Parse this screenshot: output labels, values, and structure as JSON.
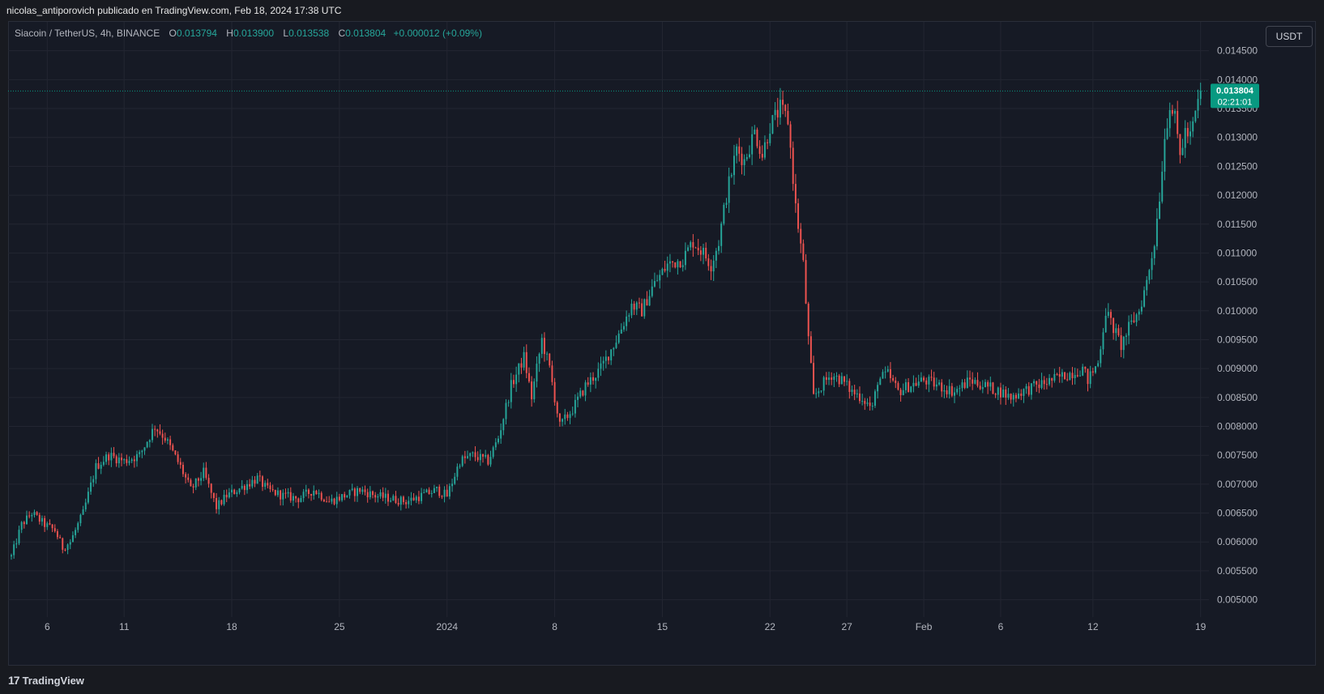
{
  "attribution": "nicolas_antiporovich publicado en TradingView.com, Feb 18, 2024 17:38 UTC",
  "legend": {
    "symbol": "Siacoin / TetherUS, 4h, BINANCE",
    "open_label": "O",
    "open": "0.013794",
    "high_label": "H",
    "high": "0.013900",
    "low_label": "L",
    "low": "0.013538",
    "close_label": "C",
    "close": "0.013804",
    "change": "+0.000012 (+0.09%)"
  },
  "currency_button": "USDT",
  "price_tag": {
    "price": "0.013804",
    "countdown": "02:21:01"
  },
  "footer": {
    "logo_text": "TradingView",
    "logo_mark": "17"
  },
  "colors": {
    "up": "#26a69a",
    "down": "#ef5350",
    "grid": "#232632",
    "text": "#b2b5be",
    "price_tag": "#089981"
  },
  "chart_data": {
    "type": "candlestick",
    "interval": "4h",
    "y_ticks": [
      "0.005000",
      "0.005500",
      "0.006000",
      "0.006500",
      "0.007000",
      "0.007500",
      "0.008000",
      "0.008500",
      "0.009000",
      "0.009500",
      "0.010000",
      "0.010500",
      "0.011000",
      "0.011500",
      "0.012000",
      "0.012500",
      "0.013000",
      "0.013500",
      "0.014000",
      "0.014500"
    ],
    "ylim": [
      0.0047,
      0.015
    ],
    "x_ticks": [
      {
        "label": "6",
        "index": 14
      },
      {
        "label": "11",
        "index": 44
      },
      {
        "label": "18",
        "index": 86
      },
      {
        "label": "25",
        "index": 128
      },
      {
        "label": "2024",
        "index": 170
      },
      {
        "label": "8",
        "index": 212
      },
      {
        "label": "15",
        "index": 254
      },
      {
        "label": "22",
        "index": 296
      },
      {
        "label": "27",
        "index": 326
      },
      {
        "label": "Feb",
        "index": 356
      },
      {
        "label": "6",
        "index": 386
      },
      {
        "label": "12",
        "index": 422
      },
      {
        "label": "19",
        "index": 464
      }
    ],
    "last_price": 0.013804,
    "anchors": [
      [
        0,
        0.00575
      ],
      [
        4,
        0.0063
      ],
      [
        8,
        0.0065
      ],
      [
        13,
        0.0063
      ],
      [
        17,
        0.0062
      ],
      [
        20,
        0.0059
      ],
      [
        23,
        0.006
      ],
      [
        28,
        0.0065
      ],
      [
        33,
        0.0073
      ],
      [
        38,
        0.0075
      ],
      [
        44,
        0.0074
      ],
      [
        50,
        0.0075
      ],
      [
        56,
        0.008
      ],
      [
        60,
        0.0078
      ],
      [
        66,
        0.0073
      ],
      [
        70,
        0.0069
      ],
      [
        75,
        0.0072
      ],
      [
        80,
        0.0066
      ],
      [
        84,
        0.0068
      ],
      [
        88,
        0.0069
      ],
      [
        92,
        0.007
      ],
      [
        96,
        0.0071
      ],
      [
        100,
        0.0069
      ],
      [
        106,
        0.0068
      ],
      [
        112,
        0.00675
      ],
      [
        118,
        0.0069
      ],
      [
        124,
        0.0067
      ],
      [
        130,
        0.0068
      ],
      [
        136,
        0.0069
      ],
      [
        142,
        0.0068
      ],
      [
        148,
        0.00675
      ],
      [
        154,
        0.0067
      ],
      [
        160,
        0.0068
      ],
      [
        166,
        0.0069
      ],
      [
        170,
        0.0068
      ],
      [
        175,
        0.0074
      ],
      [
        180,
        0.0075
      ],
      [
        186,
        0.0074
      ],
      [
        190,
        0.0078
      ],
      [
        195,
        0.0087
      ],
      [
        200,
        0.0092
      ],
      [
        203,
        0.0085
      ],
      [
        207,
        0.0095
      ],
      [
        210,
        0.009
      ],
      [
        214,
        0.008
      ],
      [
        219,
        0.0083
      ],
      [
        224,
        0.0087
      ],
      [
        230,
        0.009
      ],
      [
        236,
        0.0095
      ],
      [
        242,
        0.0101
      ],
      [
        246,
        0.01
      ],
      [
        250,
        0.0104
      ],
      [
        256,
        0.0108
      ],
      [
        262,
        0.0109
      ],
      [
        266,
        0.0112
      ],
      [
        270,
        0.011
      ],
      [
        273,
        0.0108
      ],
      [
        276,
        0.0112
      ],
      [
        279,
        0.012
      ],
      [
        283,
        0.0128
      ],
      [
        286,
        0.0126
      ],
      [
        290,
        0.0131
      ],
      [
        293,
        0.0127
      ],
      [
        296,
        0.0132
      ],
      [
        300,
        0.0135
      ],
      [
        303,
        0.0133
      ],
      [
        306,
        0.0118
      ],
      [
        309,
        0.0108
      ],
      [
        311,
        0.0095
      ],
      [
        313,
        0.0085
      ],
      [
        316,
        0.0087
      ],
      [
        320,
        0.0089
      ],
      [
        324,
        0.0088
      ],
      [
        328,
        0.0086
      ],
      [
        332,
        0.0085
      ],
      [
        336,
        0.0083
      ],
      [
        338,
        0.0088
      ],
      [
        342,
        0.0089
      ],
      [
        346,
        0.0086
      ],
      [
        350,
        0.0087
      ],
      [
        356,
        0.0088
      ],
      [
        362,
        0.0087
      ],
      [
        368,
        0.0086
      ],
      [
        374,
        0.0088
      ],
      [
        380,
        0.0087
      ],
      [
        386,
        0.0086
      ],
      [
        390,
        0.0085
      ],
      [
        394,
        0.0086
      ],
      [
        400,
        0.0087
      ],
      [
        406,
        0.0088
      ],
      [
        412,
        0.0089
      ],
      [
        418,
        0.009
      ],
      [
        420,
        0.0088
      ],
      [
        424,
        0.0091
      ],
      [
        427,
        0.01
      ],
      [
        430,
        0.0097
      ],
      [
        433,
        0.0094
      ],
      [
        436,
        0.0097
      ],
      [
        440,
        0.01
      ],
      [
        443,
        0.0105
      ],
      [
        446,
        0.0112
      ],
      [
        448,
        0.012
      ],
      [
        450,
        0.013
      ],
      [
        452,
        0.0136
      ],
      [
        454,
        0.0133
      ],
      [
        456,
        0.0127
      ],
      [
        458,
        0.0131
      ],
      [
        460,
        0.013
      ],
      [
        462,
        0.0134
      ],
      [
        464,
        0.013804
      ]
    ]
  }
}
